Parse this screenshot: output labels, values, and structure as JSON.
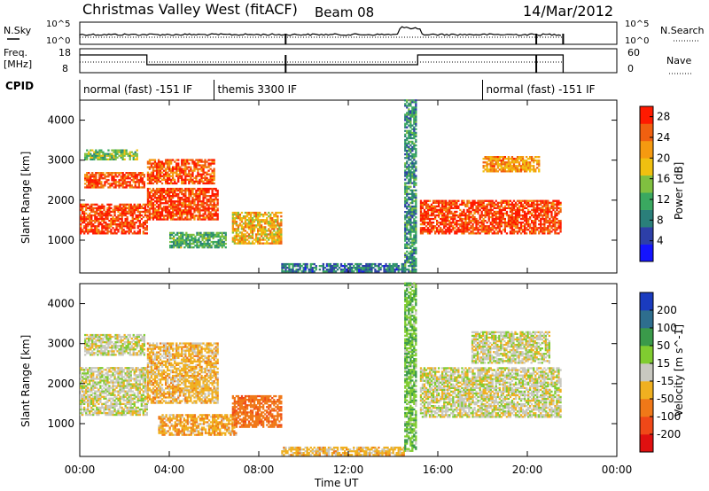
{
  "header": {
    "station": "Christmas Valley West (fitACF)",
    "beam": "Beam 08",
    "date": "14/Mar/2012"
  },
  "strips": {
    "nsky_label": "N.Sky",
    "nsky_ticks": [
      "10^5",
      "10^0"
    ],
    "nsearch_label": "N.Search",
    "freq_label_1": "Freq.",
    "freq_label_2": "[MHz]",
    "freq_ticks": [
      "18",
      "8"
    ],
    "nave_ticks": [
      "60",
      "0"
    ],
    "nave_label": "Nave",
    "cpid_label": "CPID",
    "cpid_segments": [
      {
        "label": "normal (fast) -151 IF",
        "start_hour": 0,
        "end_hour": 6
      },
      {
        "label": "themis 3300 IF",
        "start_hour": 6,
        "end_hour": 18
      },
      {
        "label": "normal (fast) -151 IF",
        "start_hour": 18,
        "end_hour": 24
      }
    ]
  },
  "chart_data": [
    {
      "type": "heatmap",
      "panel": "power",
      "title": "",
      "xlabel": "Time UT",
      "ylabel": "Slant Range [km]",
      "x_ticks": [
        "00:00",
        "04:00",
        "08:00",
        "12:00",
        "16:00",
        "20:00",
        "00:00"
      ],
      "xlim_hours": [
        0,
        24
      ],
      "y_ticks": [
        1000,
        2000,
        3000,
        4000
      ],
      "ylim": [
        180,
        4500
      ],
      "colorbar": {
        "label": "Power [dB]",
        "ticks": [
          4,
          8,
          12,
          16,
          20,
          24,
          28
        ],
        "range": [
          0,
          30
        ],
        "colors": [
          "#1414ff",
          "#2d3fa8",
          "#2a7f7a",
          "#3aa860",
          "#80c040",
          "#f0c010",
          "#f59a10",
          "#f06010",
          "#ff1a00"
        ]
      },
      "regions": [
        {
          "start_hour": 0.0,
          "end_hour": 3.0,
          "range_km": [
            1150,
            1900
          ],
          "value_db": 27
        },
        {
          "start_hour": 0.2,
          "end_hour": 2.9,
          "range_km": [
            2300,
            2700
          ],
          "value_db": 26
        },
        {
          "start_hour": 0.2,
          "end_hour": 2.6,
          "range_km": [
            3000,
            3250
          ],
          "value_db": 14
        },
        {
          "start_hour": 3.0,
          "end_hour": 6.2,
          "range_km": [
            1500,
            2300
          ],
          "value_db": 27
        },
        {
          "start_hour": 3.0,
          "end_hour": 6.0,
          "range_km": [
            2400,
            3000
          ],
          "value_db": 26
        },
        {
          "start_hour": 4.0,
          "end_hour": 6.5,
          "range_km": [
            800,
            1200
          ],
          "value_db": 12
        },
        {
          "start_hour": 6.8,
          "end_hour": 9.0,
          "range_km": [
            900,
            1700
          ],
          "value_db": 20
        },
        {
          "start_hour": 9.0,
          "end_hour": 14.5,
          "range_km": [
            200,
            400
          ],
          "value_db": 8
        },
        {
          "start_hour": 14.5,
          "end_hour": 15.0,
          "range_km": [
            200,
            4500
          ],
          "value_db": 10
        },
        {
          "start_hour": 15.2,
          "end_hour": 21.5,
          "range_km": [
            1150,
            2000
          ],
          "value_db": 27
        },
        {
          "start_hour": 18.0,
          "end_hour": 20.5,
          "range_km": [
            2700,
            3100
          ],
          "value_db": 22
        }
      ]
    },
    {
      "type": "heatmap",
      "panel": "velocity",
      "title": "",
      "xlabel": "Time UT",
      "ylabel": "Slant Range [km]",
      "x_ticks": [
        "00:00",
        "04:00",
        "08:00",
        "12:00",
        "16:00",
        "20:00",
        "00:00"
      ],
      "xlim_hours": [
        0,
        24
      ],
      "y_ticks": [
        1000,
        2000,
        3000,
        4000
      ],
      "ylim": [
        180,
        4500
      ],
      "colorbar": {
        "label": "Velocity [m s^-1]",
        "ticks": [
          200,
          100,
          50,
          15,
          -15,
          -50,
          -100,
          -200
        ],
        "colors": [
          "#1a3bbf",
          "#2e6e8e",
          "#3a9a4a",
          "#80cc30",
          "#c8c8c0",
          "#f0b020",
          "#f07818",
          "#f04818",
          "#e01010"
        ]
      },
      "regions": [
        {
          "start_hour": 0.0,
          "end_hour": 3.0,
          "range_km": [
            1200,
            2400
          ],
          "velocity_ms": 0
        },
        {
          "start_hour": 0.2,
          "end_hour": 2.9,
          "range_km": [
            2700,
            3200
          ],
          "velocity_ms": 0
        },
        {
          "start_hour": 3.0,
          "end_hour": 6.2,
          "range_km": [
            1500,
            3000
          ],
          "velocity_ms": -30
        },
        {
          "start_hour": 3.5,
          "end_hour": 7.0,
          "range_km": [
            700,
            1200
          ],
          "velocity_ms": -40
        },
        {
          "start_hour": 6.8,
          "end_hour": 9.0,
          "range_km": [
            900,
            1700
          ],
          "velocity_ms": -80
        },
        {
          "start_hour": 9.0,
          "end_hour": 14.5,
          "range_km": [
            200,
            400
          ],
          "velocity_ms": -30
        },
        {
          "start_hour": 14.5,
          "end_hour": 15.0,
          "range_km": [
            300,
            4500
          ],
          "velocity_ms": 40
        },
        {
          "start_hour": 15.2,
          "end_hour": 21.5,
          "range_km": [
            1150,
            2400
          ],
          "velocity_ms": 0
        },
        {
          "start_hour": 17.5,
          "end_hour": 21.0,
          "range_km": [
            2500,
            3300
          ],
          "velocity_ms": 0
        }
      ]
    }
  ]
}
